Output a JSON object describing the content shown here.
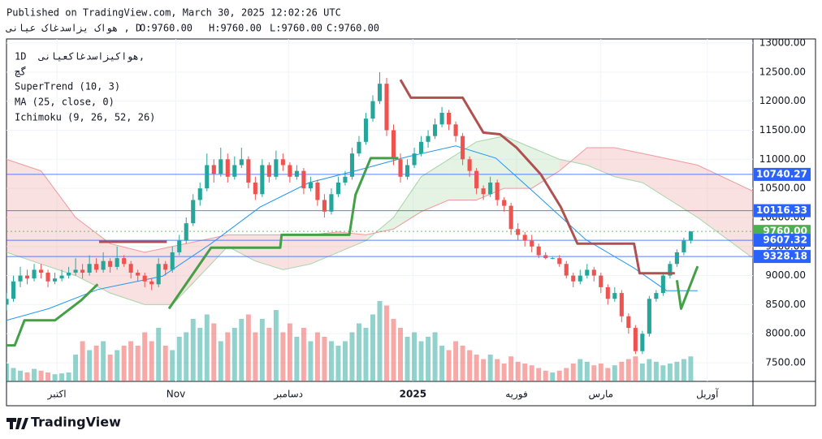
{
  "header": {
    "published": "Published on TradingView.com, March 30, 2025 12:02:26 UTC",
    "symbol": "هواک یزاسدغاک عیانی , D",
    "ohlc": [
      "O:9760.00",
      "H:9760.00",
      "L:9760.00",
      "C:9760.00"
    ]
  },
  "legend": {
    "interval": "1D",
    "symbol": "هواکیزاسدغاکعیانی,",
    "exchange": "گچ"
  },
  "footer": "TradingView",
  "chart_data": {
    "type": "candlestick",
    "xlim": [
      0,
      108
    ],
    "ylim": [
      7180,
      13070
    ],
    "yticks": [
      {
        "value": 7500,
        "label": "7500.00"
      },
      {
        "value": 8000,
        "label": "8000.00"
      },
      {
        "value": 8500,
        "label": "8500.00"
      },
      {
        "value": 9000,
        "label": "9000.00"
      },
      {
        "value": 9500,
        "label": "9500.00"
      },
      {
        "value": 10000,
        "label": "10000.00"
      },
      {
        "value": 10500,
        "label": "10500.00"
      },
      {
        "value": 11000,
        "label": "11000.00"
      },
      {
        "value": 11500,
        "label": "11500.00"
      },
      {
        "value": 12000,
        "label": "12000.00"
      },
      {
        "value": 12500,
        "label": "12500.00"
      },
      {
        "value": 13000,
        "label": "13000.00"
      }
    ],
    "xticks": [
      {
        "value": 7.3,
        "label": "اکتبر"
      },
      {
        "value": 24.5,
        "label": "Nov"
      },
      {
        "value": 40.8,
        "label": "دسامبر"
      },
      {
        "value": 58.8,
        "label": "2025"
      },
      {
        "value": 73.8,
        "label": "فوریه"
      },
      {
        "value": 86,
        "label": "مارس"
      },
      {
        "value": 101.4,
        "label": "آوریل"
      }
    ],
    "grid": true,
    "up_color": "#26a69a",
    "down_color": "#ef5350",
    "candles": [
      [
        8500,
        8700,
        8400,
        8600
      ],
      [
        8600,
        9000,
        8550,
        8900
      ],
      [
        8900,
        9150,
        8800,
        9000
      ],
      [
        9000,
        9100,
        8850,
        8950
      ],
      [
        8950,
        9200,
        8900,
        9100
      ],
      [
        9100,
        9200,
        8950,
        9050
      ],
      [
        9050,
        9100,
        8800,
        8900
      ],
      [
        8900,
        9050,
        8850,
        8950
      ],
      [
        8950,
        9100,
        8900,
        9000
      ],
      [
        9000,
        9150,
        8950,
        9050
      ],
      [
        9050,
        9300,
        9000,
        9100
      ],
      [
        9100,
        9200,
        8950,
        9050
      ],
      [
        9050,
        9350,
        9000,
        9200
      ],
      [
        9200,
        9300,
        9050,
        9100
      ],
      [
        9100,
        9400,
        9050,
        9250
      ],
      [
        9250,
        9300,
        9050,
        9150
      ],
      [
        9150,
        9500,
        9100,
        9300
      ],
      [
        9300,
        9350,
        9150,
        9200
      ],
      [
        9200,
        9250,
        8950,
        9050
      ],
      [
        9050,
        9100,
        8900,
        9000
      ],
      [
        9000,
        9050,
        8800,
        8900
      ],
      [
        8900,
        8950,
        8750,
        8850
      ],
      [
        8850,
        9300,
        8800,
        9200
      ],
      [
        9200,
        9250,
        9000,
        9100
      ],
      [
        9100,
        9500,
        9050,
        9400
      ],
      [
        9400,
        9700,
        9350,
        9600
      ],
      [
        9600,
        10000,
        9550,
        9900
      ],
      [
        9900,
        10400,
        9850,
        10300
      ],
      [
        10300,
        10600,
        10200,
        10500
      ],
      [
        10500,
        11100,
        10450,
        10900
      ],
      [
        10900,
        11000,
        10600,
        10750
      ],
      [
        10750,
        11200,
        10700,
        11000
      ],
      [
        11000,
        11100,
        10600,
        10700
      ],
      [
        10700,
        11050,
        10650,
        10900
      ],
      [
        10900,
        11200,
        10850,
        11000
      ],
      [
        11000,
        11050,
        10500,
        10600
      ],
      [
        10600,
        10700,
        10300,
        10400
      ],
      [
        10400,
        11000,
        10350,
        10900
      ],
      [
        10900,
        10950,
        10600,
        10700
      ],
      [
        10700,
        11150,
        10650,
        11000
      ],
      [
        11000,
        11100,
        10800,
        10900
      ],
      [
        10900,
        10950,
        10600,
        10700
      ],
      [
        10700,
        10900,
        10650,
        10800
      ],
      [
        10800,
        10850,
        10400,
        10500
      ],
      [
        10500,
        10700,
        10450,
        10600
      ],
      [
        10600,
        10650,
        10200,
        10300
      ],
      [
        10300,
        10400,
        10000,
        10100
      ],
      [
        10100,
        10500,
        10050,
        10400
      ],
      [
        10400,
        10700,
        10350,
        10600
      ],
      [
        10600,
        10800,
        10550,
        10700
      ],
      [
        10700,
        11200,
        10650,
        11100
      ],
      [
        11100,
        11400,
        11050,
        11300
      ],
      [
        11300,
        11800,
        11250,
        11700
      ],
      [
        11700,
        12100,
        11650,
        12000
      ],
      [
        12000,
        12500,
        11950,
        12300
      ],
      [
        12300,
        12400,
        11400,
        11500
      ],
      [
        11500,
        11600,
        10900,
        11000
      ],
      [
        11000,
        11100,
        10600,
        10700
      ],
      [
        10700,
        11000,
        10650,
        10900
      ],
      [
        10900,
        11200,
        10850,
        11100
      ],
      [
        11100,
        11400,
        11050,
        11300
      ],
      [
        11300,
        11500,
        11200,
        11400
      ],
      [
        11400,
        11700,
        11350,
        11600
      ],
      [
        11600,
        11900,
        11550,
        11800
      ],
      [
        11800,
        11850,
        11500,
        11600
      ],
      [
        11600,
        11650,
        11300,
        11400
      ],
      [
        11400,
        11450,
        10900,
        11000
      ],
      [
        11000,
        11050,
        10700,
        10800
      ],
      [
        10800,
        10850,
        10400,
        10500
      ],
      [
        10500,
        10550,
        10300,
        10400
      ],
      [
        10400,
        10700,
        10350,
        10600
      ],
      [
        10600,
        10650,
        10200,
        10300
      ],
      [
        10300,
        10350,
        10100,
        10200
      ],
      [
        10200,
        10250,
        9700,
        9800
      ],
      [
        9800,
        9900,
        9600,
        9700
      ],
      [
        9700,
        9750,
        9500,
        9600
      ],
      [
        9600,
        9700,
        9400,
        9500
      ],
      [
        9500,
        9550,
        9300,
        9350
      ],
      [
        9350,
        9400,
        9280,
        9300
      ],
      [
        9300,
        9320,
        9280,
        9300
      ],
      [
        9300,
        9350,
        9150,
        9200
      ],
      [
        9200,
        9250,
        8950,
        9000
      ],
      [
        9000,
        9050,
        8800,
        8900
      ],
      [
        8900,
        9100,
        8850,
        9000
      ],
      [
        9000,
        9200,
        8950,
        9100
      ],
      [
        9100,
        9150,
        8900,
        9000
      ],
      [
        9000,
        9050,
        8700,
        8800
      ],
      [
        8800,
        8850,
        8500,
        8600
      ],
      [
        8600,
        8800,
        8550,
        8700
      ],
      [
        8700,
        8750,
        8200,
        8300
      ],
      [
        8300,
        8350,
        8000,
        8100
      ],
      [
        8100,
        8150,
        7650,
        7700
      ],
      [
        7700,
        8050,
        7650,
        8000
      ],
      [
        8000,
        8650,
        7950,
        8600
      ],
      [
        8600,
        8750,
        8550,
        8700
      ],
      [
        8700,
        9050,
        8650,
        9000
      ],
      [
        9000,
        9250,
        8950,
        9200
      ],
      [
        9200,
        9450,
        9150,
        9400
      ],
      [
        9400,
        9650,
        9350,
        9600
      ],
      [
        9600,
        9760,
        9550,
        9760
      ]
    ],
    "volume": [
      20,
      15,
      12,
      10,
      14,
      12,
      10,
      8,
      9,
      10,
      30,
      45,
      35,
      40,
      45,
      30,
      35,
      40,
      45,
      40,
      55,
      45,
      60,
      40,
      35,
      50,
      55,
      70,
      60,
      75,
      65,
      45,
      55,
      60,
      70,
      75,
      55,
      70,
      60,
      80,
      55,
      65,
      50,
      60,
      45,
      55,
      50,
      45,
      40,
      45,
      55,
      65,
      60,
      75,
      90,
      85,
      70,
      60,
      50,
      55,
      45,
      50,
      55,
      40,
      35,
      45,
      40,
      35,
      30,
      25,
      30,
      25,
      20,
      28,
      22,
      20,
      18,
      15,
      12,
      10,
      12,
      15,
      20,
      25,
      22,
      18,
      20,
      15,
      18,
      22,
      25,
      28,
      20,
      25,
      22,
      18,
      20,
      22,
      25,
      28
    ],
    "supertrend": {
      "name": "SuperTrend (10, 3)",
      "segments": [
        {
          "color": "#43a047",
          "x": [
            0,
            1.2,
            2.6,
            7,
            10.8,
            13.2
          ],
          "values": [
            7800,
            7800,
            8230,
            8230,
            8575,
            8850
          ]
        },
        {
          "color": "#b05050",
          "x": [
            13.4,
            23.2
          ],
          "values": [
            9580,
            9580
          ]
        },
        {
          "color": "#43a047",
          "x": [
            23.5,
            29.6,
            39.6,
            39.8,
            49.6,
            50.5,
            52.7,
            56.7
          ],
          "values": [
            8430,
            9480,
            9480,
            9700,
            9700,
            10390,
            11020,
            11020
          ]
        },
        {
          "color": "#b05050",
          "x": [
            57,
            58.5,
            66,
            69,
            71.4,
            73.8,
            77.3,
            80.2,
            82.6,
            90.8,
            91.6,
            96.7
          ],
          "values": [
            12370,
            12060,
            12060,
            11460,
            11430,
            11200,
            10740,
            10180,
            9550,
            9550,
            9040,
            9040
          ]
        },
        {
          "color": "#43a047",
          "x": [
            97,
            97.6,
            100
          ],
          "values": [
            8920,
            8430,
            9160
          ]
        }
      ]
    },
    "ma": {
      "name": "MA (25, close, 0)",
      "color": "#2196f3",
      "x": [
        0,
        6.1,
        13.2,
        22.6,
        29.6,
        36.7,
        43.8,
        50.8,
        57.9,
        65,
        70.8,
        76.7,
        83.8,
        90.8,
        95.5,
        100
      ],
      "values": [
        8230,
        8430,
        8760,
        8990,
        9550,
        10180,
        10600,
        10810,
        11040,
        11230,
        11020,
        10390,
        9620,
        9130,
        8740,
        8740
      ]
    },
    "ichimoku": {
      "name": "Ichimoku (9, 26, 52, 26)",
      "colors": [
        "#a5d6a7",
        "#ef9a9a"
      ],
      "x": [
        0,
        5,
        10,
        15,
        20,
        24,
        28,
        32,
        36,
        40,
        44,
        48,
        52,
        56,
        60,
        64,
        68,
        72,
        76,
        80,
        84,
        88,
        92,
        96,
        100,
        108
      ],
      "span_a": [
        9400,
        9200,
        9000,
        8700,
        8500,
        8500,
        9000,
        9500,
        9250,
        9100,
        9200,
        9400,
        9600,
        10000,
        10700,
        11000,
        11300,
        11400,
        11200,
        11000,
        10900,
        10700,
        10600,
        10300,
        10000,
        9300
      ],
      "span_b": [
        11000,
        10800,
        10000,
        9550,
        9400,
        9500,
        9600,
        9700,
        9700,
        9700,
        9700,
        9750,
        9700,
        9800,
        10100,
        10300,
        10300,
        10500,
        10500,
        10800,
        11200,
        11200,
        11100,
        11000,
        10900,
        10450
      ]
    },
    "price_lines": [
      10740.27,
      10116.33,
      {
        "value": 9760,
        "label": "9760.00"
      },
      9607.32,
      9328.18
    ],
    "price_line_colors": [
      "#2962ff",
      "#2962ff",
      "#4caf50",
      "#2962ff",
      "#2962ff"
    ]
  }
}
